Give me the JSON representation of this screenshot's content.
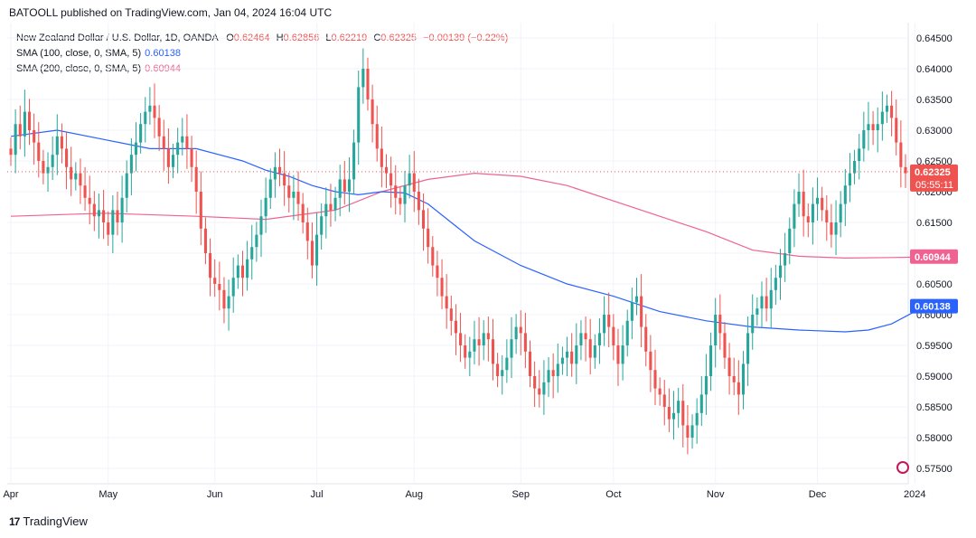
{
  "header": {
    "text": "BATOOLL published on TradingView.com, Jan 04, 2024 16:04 UTC"
  },
  "legend": {
    "symbol": "New Zealand Dollar / U.S. Dollar, 1D, OANDA",
    "ohlc": [
      {
        "key": "O",
        "value": "0.62464"
      },
      {
        "key": "H",
        "value": "0.62856"
      },
      {
        "key": "L",
        "value": "0.62219"
      },
      {
        "key": "C",
        "value": "0.62325"
      }
    ],
    "change": "−0.00139 (−0.22%)",
    "sma100": {
      "label": "SMA (100, close, 0, SMA, 5)",
      "value": "0.60138"
    },
    "sma200": {
      "label": "SMA (200, close, 0, SMA, 5)",
      "value": "0.60944"
    }
  },
  "colors": {
    "up": "#26a69a",
    "down": "#ef5350",
    "sma100": "#2962ff",
    "sma200": "#f06292",
    "grid": "#f0f3fa",
    "axisText": "#131722"
  },
  "price_tags": [
    {
      "name": "last-price",
      "value": "0.62325",
      "sub": "05:55:11",
      "color": "#ef5350"
    },
    {
      "name": "sma200",
      "value": "0.60944",
      "color": "#f06292"
    },
    {
      "name": "sma100",
      "value": "0.60138",
      "color": "#2962ff"
    }
  ],
  "footer": {
    "brand": "TradingView"
  },
  "chart_data": {
    "type": "candlestick",
    "title": "New Zealand Dollar / U.S. Dollar, 1D, OANDA",
    "ylim": [
      0.5725,
      0.6475
    ],
    "y_ticks": [
      "0.64500",
      "0.64000",
      "0.63500",
      "0.63000",
      "0.62500",
      "0.62000",
      "0.61500",
      "0.61000",
      "0.60500",
      "0.60000",
      "0.59500",
      "0.59000",
      "0.58500",
      "0.58000",
      "0.57500"
    ],
    "x_ticks": [
      {
        "label": "Apr",
        "bar": 0
      },
      {
        "label": "May",
        "bar": 21
      },
      {
        "label": "Jun",
        "bar": 44
      },
      {
        "label": "Jul",
        "bar": 66
      },
      {
        "label": "Aug",
        "bar": 87
      },
      {
        "label": "Sep",
        "bar": 110
      },
      {
        "label": "Oct",
        "bar": 130
      },
      {
        "label": "Nov",
        "bar": 152
      },
      {
        "label": "Dec",
        "bar": 174
      },
      {
        "label": "2024",
        "bar": 195
      }
    ],
    "closes": [
      0.626,
      0.631,
      0.629,
      0.633,
      0.63,
      0.628,
      0.625,
      0.623,
      0.624,
      0.626,
      0.629,
      0.627,
      0.624,
      0.622,
      0.623,
      0.621,
      0.619,
      0.618,
      0.616,
      0.617,
      0.615,
      0.613,
      0.617,
      0.615,
      0.619,
      0.623,
      0.626,
      0.628,
      0.631,
      0.633,
      0.634,
      0.632,
      0.629,
      0.627,
      0.624,
      0.626,
      0.628,
      0.629,
      0.627,
      0.624,
      0.62,
      0.614,
      0.61,
      0.606,
      0.605,
      0.604,
      0.601,
      0.603,
      0.606,
      0.608,
      0.606,
      0.609,
      0.611,
      0.613,
      0.616,
      0.619,
      0.622,
      0.624,
      0.623,
      0.621,
      0.619,
      0.62,
      0.618,
      0.615,
      0.612,
      0.608,
      0.613,
      0.616,
      0.618,
      0.617,
      0.619,
      0.622,
      0.62,
      0.622,
      0.628,
      0.637,
      0.64,
      0.635,
      0.631,
      0.627,
      0.624,
      0.623,
      0.621,
      0.619,
      0.618,
      0.621,
      0.623,
      0.62,
      0.617,
      0.614,
      0.611,
      0.608,
      0.606,
      0.603,
      0.601,
      0.599,
      0.597,
      0.595,
      0.593,
      0.594,
      0.596,
      0.595,
      0.597,
      0.596,
      0.592,
      0.59,
      0.591,
      0.593,
      0.596,
      0.598,
      0.597,
      0.594,
      0.59,
      0.588,
      0.587,
      0.589,
      0.591,
      0.59,
      0.592,
      0.593,
      0.594,
      0.592,
      0.595,
      0.597,
      0.596,
      0.593,
      0.595,
      0.597,
      0.6,
      0.598,
      0.595,
      0.592,
      0.595,
      0.599,
      0.602,
      0.603,
      0.598,
      0.594,
      0.591,
      0.588,
      0.587,
      0.585,
      0.583,
      0.584,
      0.586,
      0.582,
      0.58,
      0.582,
      0.584,
      0.587,
      0.59,
      0.595,
      0.6,
      0.597,
      0.593,
      0.59,
      0.589,
      0.587,
      0.592,
      0.597,
      0.6,
      0.601,
      0.603,
      0.601,
      0.604,
      0.606,
      0.608,
      0.61,
      0.614,
      0.618,
      0.62,
      0.616,
      0.615,
      0.618,
      0.619,
      0.617,
      0.615,
      0.613,
      0.615,
      0.618,
      0.621,
      0.623,
      0.625,
      0.627,
      0.63,
      0.631,
      0.63,
      0.631,
      0.633,
      0.634,
      0.632,
      0.628,
      0.624,
      0.623
    ],
    "sma100": [
      [
        0,
        0.629
      ],
      [
        10,
        0.63
      ],
      [
        20,
        0.6285
      ],
      [
        30,
        0.627
      ],
      [
        40,
        0.627
      ],
      [
        50,
        0.625
      ],
      [
        55,
        0.6235
      ],
      [
        60,
        0.6225
      ],
      [
        65,
        0.621
      ],
      [
        70,
        0.62
      ],
      [
        75,
        0.6195
      ],
      [
        80,
        0.62
      ],
      [
        85,
        0.6198
      ],
      [
        90,
        0.618
      ],
      [
        95,
        0.615
      ],
      [
        100,
        0.612
      ],
      [
        110,
        0.608
      ],
      [
        120,
        0.605
      ],
      [
        130,
        0.603
      ],
      [
        140,
        0.6005
      ],
      [
        150,
        0.599
      ],
      [
        160,
        0.598
      ],
      [
        170,
        0.5975
      ],
      [
        180,
        0.5972
      ],
      [
        185,
        0.5975
      ],
      [
        190,
        0.5985
      ],
      [
        195,
        0.6005
      ],
      [
        198,
        0.6014
      ]
    ],
    "sma200": [
      [
        0,
        0.616
      ],
      [
        20,
        0.6165
      ],
      [
        40,
        0.616
      ],
      [
        55,
        0.6155
      ],
      [
        70,
        0.617
      ],
      [
        80,
        0.62
      ],
      [
        90,
        0.622
      ],
      [
        100,
        0.623
      ],
      [
        110,
        0.6225
      ],
      [
        120,
        0.621
      ],
      [
        130,
        0.6185
      ],
      [
        140,
        0.616
      ],
      [
        150,
        0.6135
      ],
      [
        160,
        0.6105
      ],
      [
        170,
        0.6095
      ],
      [
        180,
        0.6092
      ],
      [
        190,
        0.6093
      ],
      [
        198,
        0.6094
      ]
    ]
  }
}
